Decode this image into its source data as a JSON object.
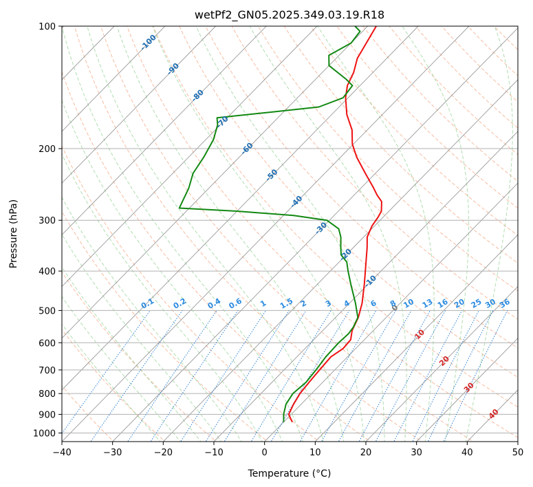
{
  "chart_data": {
    "type": "skew-t",
    "title": "wetPf2_GN05.2025.349.03.19.R18",
    "xlabel": "Temperature (°C)",
    "ylabel": "Pressure (hPa)",
    "xlim": [
      -40,
      50
    ],
    "ylim": [
      1050,
      100
    ],
    "x_ticks": [
      "−40",
      "−30",
      "−20",
      "−10",
      "0",
      "10",
      "20",
      "30",
      "40",
      "50"
    ],
    "x_tick_values": [
      -40,
      -30,
      -20,
      -10,
      0,
      10,
      20,
      30,
      40,
      50
    ],
    "y_ticks": [
      "100",
      "200",
      "300",
      "400",
      "500",
      "600",
      "700",
      "800",
      "900",
      "1000"
    ],
    "y_tick_values": [
      100,
      200,
      300,
      400,
      500,
      600,
      700,
      800,
      900,
      1000
    ],
    "isotherm_labels": [
      "-100",
      "-90",
      "-80",
      "-70",
      "-60",
      "-50",
      "-40",
      "-30",
      "-20",
      "-10",
      "0",
      "10",
      "20",
      "30",
      "40"
    ],
    "isotherm_values": [
      -100,
      -90,
      -80,
      -70,
      -60,
      -50,
      -40,
      -30,
      -20,
      -10,
      0,
      10,
      20,
      30,
      40
    ],
    "mixing_ratio_labels": [
      "0.1",
      "0.2",
      "0.4",
      "0.6",
      "1",
      "1.5",
      "2",
      "3",
      "4",
      "6",
      "8",
      "10",
      "13",
      "16",
      "20",
      "25",
      "30",
      "36"
    ],
    "mixing_ratio_values": [
      0.1,
      0.2,
      0.4,
      0.6,
      1,
      1.5,
      2,
      3,
      4,
      6,
      8,
      10,
      13,
      16,
      20,
      25,
      30,
      36
    ],
    "series": [
      {
        "name": "Temperature",
        "color": "#ee1111",
        "points": [
          [
            940,
            1.7
          ],
          [
            900,
            -0.5
          ],
          [
            850,
            -1.5
          ],
          [
            800,
            -2.3
          ],
          [
            750,
            -2.7
          ],
          [
            700,
            -3.0
          ],
          [
            650,
            -3.3
          ],
          [
            620,
            -2.5
          ],
          [
            590,
            -2.7
          ],
          [
            560,
            -4.2
          ],
          [
            520,
            -5.5
          ],
          [
            480,
            -7.5
          ],
          [
            430,
            -10.8
          ],
          [
            380,
            -14.7
          ],
          [
            350,
            -17.3
          ],
          [
            330,
            -19.3
          ],
          [
            310,
            -20.5
          ],
          [
            295,
            -21.0
          ],
          [
            285,
            -21.5
          ],
          [
            270,
            -23.3
          ],
          [
            260,
            -25.5
          ],
          [
            250,
            -27.5
          ],
          [
            230,
            -32.0
          ],
          [
            210,
            -36.8
          ],
          [
            195,
            -40.2
          ],
          [
            180,
            -43.0
          ],
          [
            165,
            -47.0
          ],
          [
            150,
            -50.5
          ],
          [
            140,
            -52.5
          ],
          [
            130,
            -53.8
          ],
          [
            120,
            -55.8
          ],
          [
            110,
            -57.0
          ],
          [
            100,
            -58.3
          ]
        ]
      },
      {
        "name": "Dewpoint",
        "color": "#118811",
        "points": [
          [
            940,
            0.0
          ],
          [
            900,
            -1.5
          ],
          [
            850,
            -3.0
          ],
          [
            800,
            -3.7
          ],
          [
            750,
            -3.3
          ],
          [
            700,
            -3.7
          ],
          [
            650,
            -4.3
          ],
          [
            600,
            -4.5
          ],
          [
            570,
            -4.3
          ],
          [
            550,
            -4.6
          ],
          [
            520,
            -5.6
          ],
          [
            480,
            -8.8
          ],
          [
            430,
            -13.5
          ],
          [
            400,
            -16.5
          ],
          [
            380,
            -18.5
          ],
          [
            365,
            -21.0
          ],
          [
            350,
            -22.5
          ],
          [
            330,
            -24.5
          ],
          [
            315,
            -26.5
          ],
          [
            300,
            -30.5
          ],
          [
            292,
            -38.0
          ],
          [
            285,
            -50.0
          ],
          [
            280,
            -62.0
          ],
          [
            250,
            -64.0
          ],
          [
            230,
            -66.0
          ],
          [
            210,
            -67.0
          ],
          [
            190,
            -68.5
          ],
          [
            175,
            -70.5
          ],
          [
            168,
            -72.0
          ],
          [
            163,
            -63.0
          ],
          [
            158,
            -54.0
          ],
          [
            150,
            -51.0
          ],
          [
            140,
            -51.5
          ],
          [
            135,
            -54.0
          ],
          [
            125,
            -60.0
          ],
          [
            118,
            -62.0
          ],
          [
            110,
            -60.0
          ],
          [
            103,
            -60.5
          ],
          [
            100,
            -62.5
          ]
        ]
      }
    ]
  }
}
